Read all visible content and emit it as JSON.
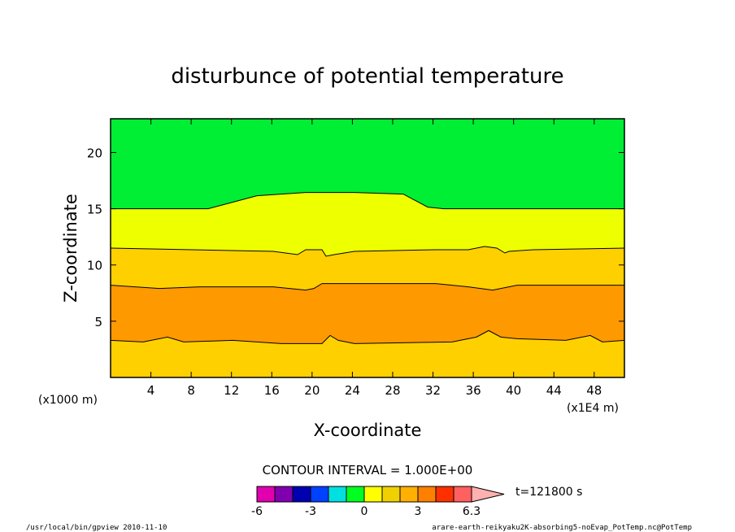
{
  "chart_data": {
    "type": "heatmap",
    "title": "disturbunce of potential temperature",
    "xlabel": "X-coordinate",
    "ylabel": "Z-coordinate",
    "x_unit": "(x1E4 m)",
    "y_unit": "(x1000 m)",
    "xlim": [
      0,
      51
    ],
    "ylim": [
      0,
      23
    ],
    "xticks": [
      4,
      8,
      12,
      16,
      20,
      24,
      28,
      32,
      36,
      40,
      44,
      48
    ],
    "yticks": [
      5,
      10,
      15,
      20
    ],
    "contour_interval": "CONTOUR INTERVAL = 1.000E+00",
    "time": "t=121800 s",
    "colorbar": {
      "colors": [
        "#e000b0",
        "#8000b0",
        "#0000b0",
        "#0040ff",
        "#00e0e0",
        "#00ff20",
        "#ffff00",
        "#f0d000",
        "#ffb000",
        "#ff7f00",
        "#ff3000",
        "#ff6060",
        "#ffb0b0"
      ],
      "tick_labels": [
        "-6",
        "-3",
        "0",
        "3",
        "6.3"
      ]
    },
    "bands": [
      {
        "value_range": "0 to 1",
        "color": "#00ee33",
        "lower_boundary_z_approx": 15.0
      },
      {
        "value_range": "1 to 2",
        "color": "#eeff00",
        "lower_boundary_z_approx": 11.5
      },
      {
        "value_range": "2 to 3",
        "color": "#ffd000",
        "lower_boundary_z_approx": 8.2
      },
      {
        "value_range": "3 to 4",
        "color": "#ff9900",
        "lower_boundary_z_approx": 3.3
      },
      {
        "value_range": "2 to 3",
        "color": "#ffd000",
        "lower_boundary_z_approx": 0
      }
    ]
  },
  "footer": {
    "left": "/usr/local/bin/gpview  2010-11-10",
    "right": "arare-earth-reikyaku2K-absorbing5-noEvap_PotTemp.nc@PotTemp"
  }
}
